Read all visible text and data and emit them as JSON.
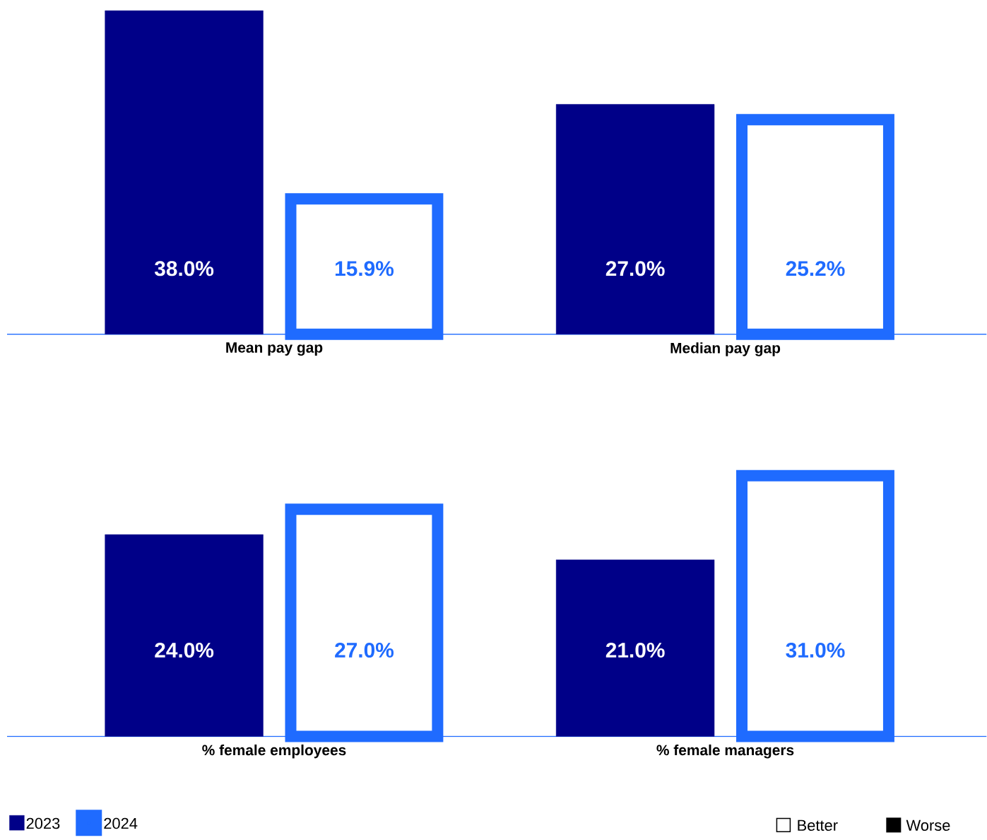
{
  "chart_data": [
    {
      "type": "bar",
      "categories": [
        "Mean pay gap",
        "Median pay gap"
      ],
      "series": [
        {
          "color": "#000088",
          "values": [
            38.0,
            27.0
          ],
          "value_labels": [
            "38.0%",
            "27.0%"
          ]
        },
        {
          "color": "#1f6bff",
          "values": [
            15.9,
            25.2
          ],
          "value_labels": [
            "15.9%",
            "25.2%"
          ]
        }
      ]
    },
    {
      "type": "bar",
      "categories": [
        "% female employees",
        "% female managers"
      ],
      "legend": "bottom left",
      "annotations": [
        "Better",
        "Worse"
      ],
      "series": [
        {
          "name": "2023",
          "color": "#000088",
          "values": [
            24.0,
            21.0
          ],
          "value_labels": [
            "24.0%",
            "21.0%"
          ]
        },
        {
          "name": "2024",
          "color": "#1f6bff",
          "values": [
            27.0,
            31.0
          ],
          "value_labels": [
            "27.0%",
            "31.0%"
          ]
        }
      ]
    }
  ]
}
